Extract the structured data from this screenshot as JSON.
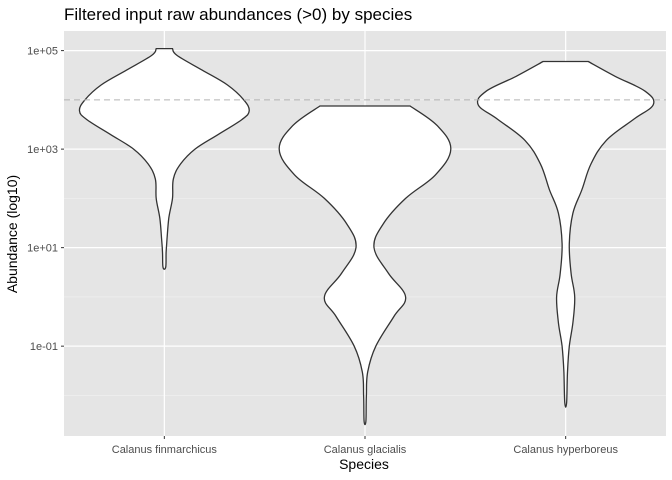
{
  "chart_data": {
    "type": "violin",
    "title": "Filtered input raw abundances (>0) by species",
    "xlabel": "Species",
    "ylabel": "Abundance (log10)",
    "y_scale": "log10",
    "ylim": [
      0.0015,
      250000
    ],
    "y_ticks": [
      {
        "value": 0.1,
        "label": "1e-01"
      },
      {
        "value": 10,
        "label": "1e+01"
      },
      {
        "value": 1000,
        "label": "1e+03"
      },
      {
        "value": 100000,
        "label": "1e+05"
      }
    ],
    "y_minor_ticks": [
      0.01,
      1,
      100,
      10000
    ],
    "reference_line": {
      "value": 10000,
      "style": "dashed",
      "color": "#b3b3b3"
    },
    "grid": true,
    "panel_background": "#e5e5e5",
    "categories": [
      "Calanus finmarchicus",
      "Calanus glacialis",
      "Calanus hyperboreus"
    ],
    "violins": [
      {
        "species": "Calanus finmarchicus",
        "min": 4,
        "max": 110000,
        "density_profile": [
          [
            110000,
            0.09
          ],
          [
            80000,
            0.14
          ],
          [
            40000,
            0.42
          ],
          [
            20000,
            0.7
          ],
          [
            10000,
            0.88
          ],
          [
            6000,
            0.94
          ],
          [
            4000,
            0.86
          ],
          [
            2000,
            0.6
          ],
          [
            1000,
            0.34
          ],
          [
            500,
            0.18
          ],
          [
            250,
            0.1
          ],
          [
            100,
            0.09
          ],
          [
            40,
            0.05
          ],
          [
            15,
            0.03
          ],
          [
            8,
            0.02
          ],
          [
            4,
            0.015
          ]
        ]
      },
      {
        "species": "Calanus glacialis",
        "min": 0.003,
        "max": 7500,
        "density_profile": [
          [
            7500,
            0.5
          ],
          [
            3000,
            0.8
          ],
          [
            1000,
            0.95
          ],
          [
            300,
            0.78
          ],
          [
            100,
            0.45
          ],
          [
            30,
            0.2
          ],
          [
            10,
            0.1
          ],
          [
            3,
            0.26
          ],
          [
            1,
            0.45
          ],
          [
            0.4,
            0.32
          ],
          [
            0.1,
            0.12
          ],
          [
            0.03,
            0.03
          ],
          [
            0.01,
            0.015
          ],
          [
            0.003,
            0.01
          ]
        ]
      },
      {
        "species": "Calanus hyperboreus",
        "min": 0.007,
        "max": 60000,
        "density_profile": [
          [
            60000,
            0.25
          ],
          [
            30000,
            0.55
          ],
          [
            15000,
            0.88
          ],
          [
            8000,
            0.97
          ],
          [
            4000,
            0.75
          ],
          [
            1500,
            0.45
          ],
          [
            500,
            0.28
          ],
          [
            150,
            0.18
          ],
          [
            50,
            0.08
          ],
          [
            12,
            0.04
          ],
          [
            3,
            0.06
          ],
          [
            1,
            0.1
          ],
          [
            0.3,
            0.08
          ],
          [
            0.1,
            0.04
          ],
          [
            0.03,
            0.02
          ],
          [
            0.007,
            0.01
          ]
        ]
      }
    ]
  }
}
